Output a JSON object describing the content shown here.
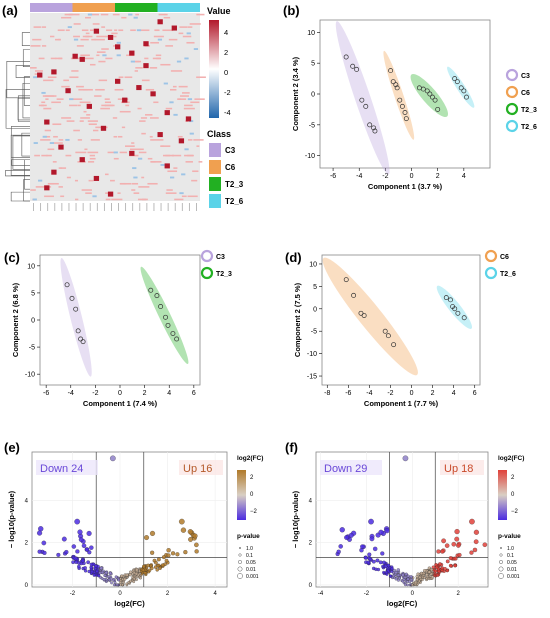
{
  "panels": {
    "a": "(a)",
    "b": "(b)",
    "c": "(c)",
    "d": "(d)",
    "e": "(e)",
    "f": "(f)"
  },
  "colors": {
    "C3": "#b9a3dd",
    "C6": "#f0a050",
    "T2_3": "#22b022",
    "T2_6": "#5bd3e8",
    "heat_high": "#b2182b",
    "heat_low": "#2166ac",
    "heat_mid": "#e8e8e8",
    "volcano_up": "#b07a2a",
    "volcano_down": "#4b2be0",
    "volcano_up_f": "#e0413a"
  },
  "chart_data": [
    {
      "id": "a",
      "type": "heatmap",
      "title": "",
      "legend_title_value": "Value",
      "legend_ticks": [
        "4",
        "2",
        "0",
        "-2",
        "-4"
      ],
      "legend_title_class": "Class",
      "classes": [
        "C3",
        "C6",
        "T2_3",
        "T2_6"
      ],
      "n_rows": 60,
      "n_cols": 24,
      "hot_cells": [
        [
          2,
          18
        ],
        [
          4,
          20
        ],
        [
          5,
          9
        ],
        [
          7,
          11
        ],
        [
          9,
          16
        ],
        [
          10,
          12
        ],
        [
          12,
          14
        ],
        [
          13,
          6
        ],
        [
          14,
          7
        ],
        [
          16,
          16
        ],
        [
          18,
          3
        ],
        [
          19,
          1
        ],
        [
          21,
          12
        ],
        [
          23,
          15
        ],
        [
          24,
          5
        ],
        [
          25,
          17
        ],
        [
          27,
          13
        ],
        [
          29,
          8
        ],
        [
          31,
          19
        ],
        [
          33,
          22
        ],
        [
          34,
          2
        ],
        [
          36,
          10
        ],
        [
          38,
          18
        ],
        [
          40,
          21
        ],
        [
          42,
          4
        ],
        [
          44,
          14
        ],
        [
          46,
          7
        ],
        [
          48,
          19
        ],
        [
          50,
          3
        ],
        [
          52,
          9
        ],
        [
          55,
          2
        ],
        [
          57,
          11
        ]
      ]
    },
    {
      "id": "b",
      "type": "scatter",
      "xlabel": "Component 1 (3.7 %)",
      "ylabel": "Component 2 (3.4 %)",
      "xlim": [
        -7,
        6
      ],
      "ylim": [
        -12,
        12
      ],
      "xticks": [
        -6,
        -4,
        -2,
        0,
        2,
        4
      ],
      "yticks": [
        -10,
        -5,
        0,
        5,
        10
      ],
      "legend": [
        "C3",
        "C6",
        "T2_3",
        "T2_6"
      ],
      "series": [
        {
          "name": "C3",
          "x": [
            -5.0,
            -4.5,
            -4.2,
            -3.8,
            -3.5,
            -3.2,
            -2.9,
            -2.8
          ],
          "y": [
            6.0,
            4.5,
            4.0,
            -1.0,
            -2.0,
            -5.0,
            -5.5,
            -6.0
          ]
        },
        {
          "name": "C6",
          "x": [
            -1.6,
            -1.4,
            -1.2,
            -1.1,
            -0.9,
            -0.7,
            -0.5,
            -0.4
          ],
          "y": [
            3.8,
            2.0,
            1.5,
            1.0,
            -1.0,
            -2.0,
            -3.0,
            -4.0
          ]
        },
        {
          "name": "T2_3",
          "x": [
            0.6,
            0.9,
            1.2,
            1.4,
            1.6,
            1.8,
            2.0
          ],
          "y": [
            1.0,
            0.8,
            0.5,
            0.0,
            -0.5,
            -1.0,
            -2.5
          ]
        },
        {
          "name": "T2_6",
          "x": [
            3.3,
            3.5,
            3.8,
            4.0,
            4.2
          ],
          "y": [
            2.5,
            2.0,
            1.0,
            0.5,
            -0.5
          ]
        }
      ]
    },
    {
      "id": "c",
      "type": "scatter",
      "xlabel": "Component 1 (7.4 %)",
      "ylabel": "Component 2 (6.8 %)",
      "xlim": [
        -6.5,
        6.5
      ],
      "ylim": [
        -12,
        12
      ],
      "xticks": [
        -6,
        -4,
        -2,
        0,
        2,
        4,
        6
      ],
      "yticks": [
        -10,
        -5,
        0,
        5,
        10
      ],
      "legend": [
        "C3",
        "T2_3"
      ],
      "series": [
        {
          "name": "C3",
          "x": [
            -4.3,
            -3.9,
            -3.6,
            -3.4,
            -3.2,
            -3.0
          ],
          "y": [
            6.5,
            4.0,
            2.0,
            -2.0,
            -3.5,
            -4.0
          ]
        },
        {
          "name": "T2_3",
          "x": [
            2.5,
            3.0,
            3.3,
            3.7,
            3.9,
            4.3,
            4.6
          ],
          "y": [
            5.5,
            4.5,
            2.5,
            0.5,
            -1.0,
            -2.5,
            -3.5
          ]
        }
      ]
    },
    {
      "id": "d",
      "type": "scatter",
      "xlabel": "Component 1 (7.7 %)",
      "ylabel": "Component 2 (7.5 %)",
      "xlim": [
        -8.5,
        6.5
      ],
      "ylim": [
        -17,
        12
      ],
      "xticks": [
        -8,
        -6,
        -4,
        -2,
        0,
        2,
        4,
        6
      ],
      "yticks": [
        -15,
        -10,
        -5,
        0,
        5,
        10
      ],
      "legend": [
        "C6",
        "T2_6"
      ],
      "series": [
        {
          "name": "C6",
          "x": [
            -6.2,
            -5.5,
            -4.8,
            -4.5,
            -2.5,
            -2.2,
            -1.7
          ],
          "y": [
            6.5,
            3.0,
            -1.0,
            -1.5,
            -5.0,
            -6.0,
            -8.0
          ]
        },
        {
          "name": "T2_6",
          "x": [
            3.3,
            3.7,
            3.9,
            4.1,
            4.4,
            5.0
          ],
          "y": [
            2.5,
            2.0,
            0.5,
            0.0,
            -1.0,
            -2.0
          ]
        }
      ]
    },
    {
      "id": "e",
      "type": "scatter",
      "subtype": "volcano",
      "xlabel": "log2(FC)",
      "ylabel": "− log10(p-value)",
      "xlim": [
        -3.7,
        4.5
      ],
      "ylim": [
        -0.1,
        6.3
      ],
      "xticks": [
        -2,
        0,
        2,
        4
      ],
      "yticks": [
        0,
        2,
        4
      ],
      "fc_threshold": [
        -1,
        1
      ],
      "p_threshold": 1.3,
      "down_label": "Down 24",
      "up_label": "Up 16",
      "colorbar_title": "log2(FC)",
      "colorbar_ticks": [
        "2",
        "0",
        "−2"
      ],
      "size_title": "p-value",
      "size_levels": [
        "1.0",
        "0.1",
        "0.05",
        "0.01",
        "0.001"
      ]
    },
    {
      "id": "f",
      "type": "scatter",
      "subtype": "volcano",
      "xlabel": "log2(FC)",
      "ylabel": "− log10(p-value)",
      "xlim": [
        -4.2,
        3.3
      ],
      "ylim": [
        -0.1,
        6.3
      ],
      "xticks": [
        -4,
        -2,
        0,
        2
      ],
      "yticks": [
        0,
        2,
        4
      ],
      "fc_threshold": [
        -1,
        1
      ],
      "p_threshold": 1.3,
      "down_label": "Down 29",
      "up_label": "Up 18",
      "colorbar_title": "log2(FC)",
      "colorbar_ticks": [
        "2",
        "0",
        "−2"
      ],
      "size_title": "p-value",
      "size_levels": [
        "1.0",
        "0.1",
        "0.05",
        "0.01",
        "0.001"
      ]
    }
  ]
}
